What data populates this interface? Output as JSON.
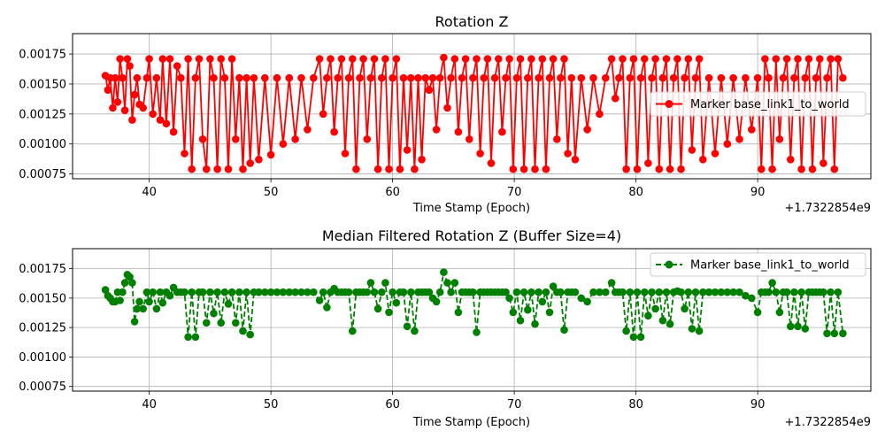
{
  "chart_data": [
    {
      "type": "line",
      "title": "Rotation Z",
      "xlabel": "Time Stamp (Epoch)",
      "ylabel": "",
      "offset_label": "+1.7322854e9",
      "xlim": [
        33.7,
        99.3
      ],
      "ylim": [
        0.00071,
        0.00192
      ],
      "xticks": [
        40,
        50,
        60,
        70,
        80,
        90
      ],
      "yticks": [
        0.00075,
        0.001,
        0.00125,
        0.0015,
        0.00175
      ],
      "ytick_labels": [
        "0.00075",
        "0.00100",
        "0.00125",
        "0.00150",
        "0.00175"
      ],
      "legend": {
        "position": "center-right",
        "label": "Marker base_link1_to_world"
      },
      "series": [
        {
          "name": "Marker base_link1_to_world",
          "color": "#ff0000",
          "linestyle": "solid",
          "marker": "circle",
          "x": [
            36.4,
            36.6,
            36.8,
            37.0,
            37.2,
            37.4,
            37.6,
            37.8,
            38.0,
            38.2,
            38.4,
            38.6,
            38.8,
            39.0,
            39.2,
            39.5,
            39.8,
            40.0,
            40.3,
            40.6,
            40.9,
            41.1,
            41.4,
            41.7,
            42.0,
            42.3,
            42.6,
            42.9,
            43.2,
            43.5,
            43.8,
            44.1,
            44.4,
            44.7,
            45.0,
            45.3,
            45.6,
            45.9,
            46.2,
            46.5,
            46.8,
            47.1,
            47.4,
            47.7,
            48.0,
            48.3,
            48.6,
            49.0,
            49.5,
            50.0,
            50.5,
            51.0,
            51.5,
            52.0,
            52.5,
            53.0,
            53.5,
            54.0,
            54.3,
            54.6,
            54.9,
            55.2,
            55.5,
            55.8,
            56.1,
            56.4,
            56.7,
            57.0,
            57.3,
            57.6,
            57.9,
            58.2,
            58.5,
            58.8,
            59.1,
            59.4,
            59.7,
            60.0,
            60.3,
            60.6,
            60.9,
            61.2,
            61.5,
            61.8,
            62.1,
            62.4,
            62.7,
            63.0,
            63.3,
            63.6,
            63.9,
            64.2,
            64.5,
            64.8,
            65.1,
            65.4,
            65.7,
            66.0,
            66.3,
            66.6,
            66.9,
            67.2,
            67.5,
            67.8,
            68.1,
            68.4,
            68.7,
            69.0,
            69.3,
            69.6,
            69.9,
            70.2,
            70.5,
            70.8,
            71.1,
            71.4,
            71.7,
            72.0,
            72.3,
            72.6,
            72.9,
            73.2,
            73.5,
            73.8,
            74.1,
            74.4,
            74.7,
            75.0,
            75.5,
            76.0,
            76.5,
            77.0,
            77.5,
            78.0,
            78.3,
            78.6,
            78.9,
            79.2,
            79.5,
            79.8,
            80.1,
            80.4,
            80.7,
            81.0,
            81.3,
            81.6,
            81.9,
            82.2,
            82.5,
            82.8,
            83.1,
            83.4,
            83.7,
            84.0,
            84.3,
            84.6,
            84.9,
            85.2,
            85.5,
            86.0,
            86.5,
            87.0,
            87.5,
            88.0,
            88.5,
            89.0,
            89.5,
            90.0,
            90.3,
            90.6,
            90.9,
            91.2,
            91.5,
            91.8,
            92.1,
            92.4,
            92.7,
            93.0,
            93.3,
            93.6,
            93.9,
            94.2,
            94.5,
            94.8,
            95.1,
            95.4,
            95.7,
            96.0,
            96.3,
            96.6,
            97.0
          ],
          "values": [
            0.00157,
            0.00145,
            0.00155,
            0.0013,
            0.00155,
            0.00135,
            0.00171,
            0.00155,
            0.00128,
            0.00171,
            0.00165,
            0.0012,
            0.00141,
            0.00155,
            0.00133,
            0.0013,
            0.00155,
            0.00171,
            0.00125,
            0.00155,
            0.0012,
            0.00171,
            0.00117,
            0.00171,
            0.0011,
            0.00165,
            0.00155,
            0.00092,
            0.00171,
            0.00079,
            0.00155,
            0.00171,
            0.00104,
            0.00079,
            0.00171,
            0.00155,
            0.00079,
            0.00171,
            0.00155,
            0.00079,
            0.00171,
            0.00104,
            0.00155,
            0.00079,
            0.00155,
            0.00084,
            0.00155,
            0.00087,
            0.00155,
            0.00091,
            0.00155,
            0.001,
            0.00155,
            0.00104,
            0.00155,
            0.00112,
            0.00155,
            0.00171,
            0.00125,
            0.00155,
            0.00171,
            0.0011,
            0.00155,
            0.00171,
            0.00092,
            0.00155,
            0.00171,
            0.00079,
            0.00155,
            0.00171,
            0.00104,
            0.00155,
            0.00171,
            0.00079,
            0.00155,
            0.00171,
            0.00079,
            0.00155,
            0.00171,
            0.00079,
            0.00155,
            0.00095,
            0.00155,
            0.00079,
            0.00155,
            0.00087,
            0.00155,
            0.00145,
            0.00155,
            0.00112,
            0.00155,
            0.00172,
            0.0013,
            0.00155,
            0.00171,
            0.0011,
            0.00155,
            0.00171,
            0.00104,
            0.00155,
            0.00171,
            0.00092,
            0.00155,
            0.00171,
            0.00084,
            0.00155,
            0.00171,
            0.0011,
            0.00155,
            0.00171,
            0.00079,
            0.00155,
            0.00171,
            0.00079,
            0.00155,
            0.00171,
            0.00079,
            0.00155,
            0.00171,
            0.00079,
            0.00155,
            0.00171,
            0.00104,
            0.00155,
            0.00171,
            0.00092,
            0.00155,
            0.00087,
            0.00155,
            0.00112,
            0.00155,
            0.00125,
            0.00155,
            0.00171,
            0.00138,
            0.00155,
            0.00171,
            0.00079,
            0.00155,
            0.00171,
            0.00079,
            0.00155,
            0.00171,
            0.00084,
            0.00155,
            0.00171,
            0.00079,
            0.00155,
            0.00171,
            0.00079,
            0.00155,
            0.00171,
            0.00079,
            0.00155,
            0.00171,
            0.00095,
            0.00155,
            0.00171,
            0.00087,
            0.00155,
            0.00092,
            0.00155,
            0.001,
            0.00155,
            0.00104,
            0.00155,
            0.00112,
            0.00155,
            0.00079,
            0.00171,
            0.00155,
            0.00079,
            0.00171,
            0.00104,
            0.00155,
            0.00171,
            0.00087,
            0.00155,
            0.00171,
            0.00079,
            0.00155,
            0.00171,
            0.00079,
            0.00155,
            0.00171,
            0.00084,
            0.00155,
            0.00171,
            0.00079,
            0.00171,
            0.00155
          ]
        }
      ]
    },
    {
      "type": "line",
      "title": "Median Filtered Rotation Z (Buffer Size=4)",
      "xlabel": "Time Stamp (Epoch)",
      "ylabel": "",
      "offset_label": "+1.7322854e9",
      "xlim": [
        33.7,
        99.3
      ],
      "ylim": [
        0.00071,
        0.00192
      ],
      "xticks": [
        40,
        50,
        60,
        70,
        80,
        90
      ],
      "yticks": [
        0.00075,
        0.001,
        0.00125,
        0.0015,
        0.00175
      ],
      "ytick_labels": [
        "0.00075",
        "0.00100",
        "0.00125",
        "0.00150",
        "0.00175"
      ],
      "legend": {
        "position": "top-right",
        "label": "Marker base_link1_to_world"
      },
      "series": [
        {
          "name": "Marker base_link1_to_world",
          "color": "#008000",
          "linestyle": "dashed",
          "marker": "circle",
          "x": [
            36.4,
            36.6,
            36.8,
            37.0,
            37.2,
            37.4,
            37.6,
            37.8,
            38.0,
            38.2,
            38.4,
            38.6,
            38.8,
            39.0,
            39.2,
            39.5,
            39.8,
            40.0,
            40.3,
            40.6,
            40.9,
            41.1,
            41.4,
            41.7,
            42.0,
            42.3,
            42.6,
            42.9,
            43.2,
            43.5,
            43.8,
            44.1,
            44.4,
            44.7,
            45.0,
            45.3,
            45.6,
            45.9,
            46.2,
            46.5,
            46.8,
            47.1,
            47.4,
            47.7,
            48.0,
            48.3,
            48.6,
            49.0,
            49.5,
            50.0,
            50.5,
            51.0,
            51.5,
            52.0,
            52.5,
            53.0,
            53.5,
            54.0,
            54.3,
            54.6,
            54.9,
            55.2,
            55.5,
            55.8,
            56.1,
            56.4,
            56.7,
            57.0,
            57.3,
            57.6,
            57.9,
            58.2,
            58.5,
            58.8,
            59.1,
            59.4,
            59.7,
            60.0,
            60.3,
            60.6,
            60.9,
            61.2,
            61.5,
            61.8,
            62.1,
            62.4,
            62.7,
            63.0,
            63.3,
            63.6,
            63.9,
            64.2,
            64.5,
            64.8,
            65.1,
            65.4,
            65.7,
            66.0,
            66.3,
            66.6,
            66.9,
            67.2,
            67.5,
            67.8,
            68.1,
            68.4,
            68.7,
            69.0,
            69.3,
            69.6,
            69.9,
            70.2,
            70.5,
            70.8,
            71.1,
            71.4,
            71.7,
            72.0,
            72.3,
            72.6,
            72.9,
            73.2,
            73.5,
            73.8,
            74.1,
            74.4,
            74.7,
            75.0,
            75.5,
            76.0,
            76.5,
            77.0,
            77.5,
            78.0,
            78.3,
            78.6,
            78.9,
            79.2,
            79.5,
            79.8,
            80.1,
            80.4,
            80.7,
            81.0,
            81.3,
            81.6,
            81.9,
            82.2,
            82.5,
            82.8,
            83.1,
            83.4,
            83.7,
            84.0,
            84.3,
            84.6,
            84.9,
            85.2,
            85.5,
            86.0,
            86.5,
            87.0,
            87.5,
            88.0,
            88.5,
            89.0,
            89.5,
            90.0,
            90.3,
            90.6,
            90.9,
            91.2,
            91.5,
            91.8,
            92.1,
            92.4,
            92.7,
            93.0,
            93.3,
            93.6,
            93.9,
            94.2,
            94.5,
            94.8,
            95.1,
            95.4,
            95.7,
            96.0,
            96.3,
            96.6,
            97.0
          ],
          "values": [
            0.00157,
            0.00152,
            0.0015,
            0.00147,
            0.00147,
            0.00155,
            0.00148,
            0.00155,
            0.00163,
            0.0017,
            0.00168,
            0.00163,
            0.0013,
            0.00141,
            0.00147,
            0.00141,
            0.00155,
            0.00147,
            0.00155,
            0.00141,
            0.00155,
            0.00146,
            0.00155,
            0.00152,
            0.00159,
            0.00155,
            0.00155,
            0.00155,
            0.00117,
            0.00155,
            0.00117,
            0.00155,
            0.00155,
            0.00129,
            0.00155,
            0.00137,
            0.00155,
            0.00129,
            0.00155,
            0.00145,
            0.00155,
            0.00129,
            0.00155,
            0.00122,
            0.00155,
            0.00119,
            0.00155,
            0.00155,
            0.00155,
            0.00155,
            0.00155,
            0.00155,
            0.00155,
            0.00155,
            0.00155,
            0.00155,
            0.00155,
            0.00148,
            0.00155,
            0.00142,
            0.00155,
            0.00158,
            0.00155,
            0.00155,
            0.00155,
            0.00155,
            0.00122,
            0.00155,
            0.00155,
            0.00155,
            0.00155,
            0.00163,
            0.00155,
            0.00141,
            0.00155,
            0.00163,
            0.00138,
            0.00155,
            0.00146,
            0.00155,
            0.00155,
            0.00126,
            0.00155,
            0.00122,
            0.00155,
            0.00155,
            0.00155,
            0.00155,
            0.0015,
            0.00147,
            0.00155,
            0.00172,
            0.00163,
            0.00155,
            0.00163,
            0.00138,
            0.00155,
            0.00155,
            0.00155,
            0.00155,
            0.00121,
            0.00155,
            0.00155,
            0.00155,
            0.00155,
            0.00155,
            0.00155,
            0.00155,
            0.00155,
            0.0015,
            0.00138,
            0.00155,
            0.00131,
            0.00155,
            0.0014,
            0.00155,
            0.00128,
            0.00155,
            0.00147,
            0.00155,
            0.00138,
            0.0016,
            0.00155,
            0.00155,
            0.00123,
            0.00155,
            0.00155,
            0.00155,
            0.0015,
            0.00147,
            0.00155,
            0.00155,
            0.00155,
            0.00163,
            0.00155,
            0.00155,
            0.00155,
            0.00122,
            0.00155,
            0.00117,
            0.00155,
            0.00117,
            0.00155,
            0.00135,
            0.00155,
            0.00141,
            0.00155,
            0.00131,
            0.00155,
            0.00128,
            0.00155,
            0.00156,
            0.00155,
            0.00141,
            0.00155,
            0.00124,
            0.00155,
            0.00122,
            0.00155,
            0.00155,
            0.00155,
            0.00155,
            0.00155,
            0.00155,
            0.00155,
            0.00152,
            0.0015,
            0.00138,
            0.00155,
            0.00155,
            0.00155,
            0.00163,
            0.00155,
            0.00138,
            0.00155,
            0.00155,
            0.00126,
            0.00155,
            0.00126,
            0.00155,
            0.00124,
            0.00155,
            0.00155,
            0.00155,
            0.00155,
            0.00155,
            0.0012,
            0.00155,
            0.0012,
            0.00155,
            0.0012
          ]
        }
      ]
    }
  ]
}
